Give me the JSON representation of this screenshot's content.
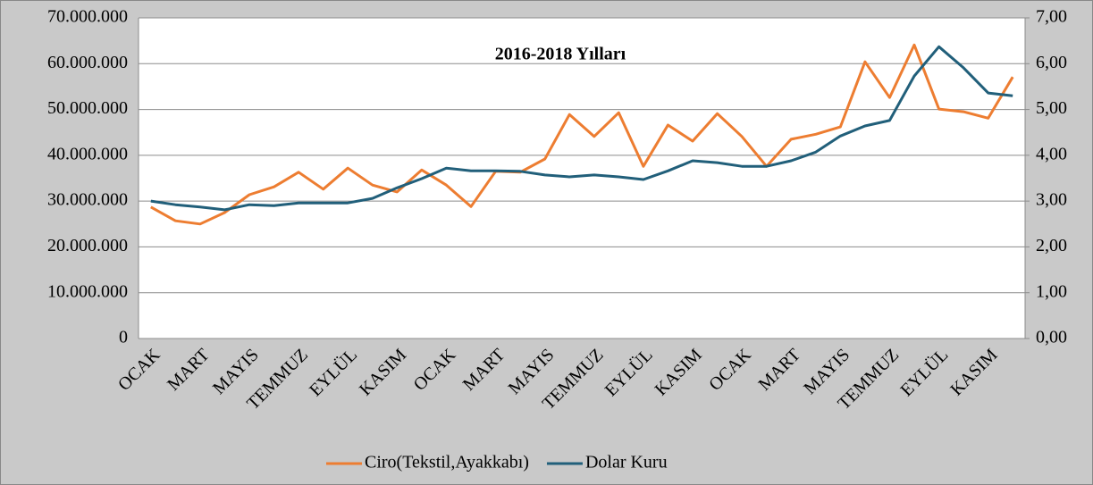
{
  "chart_data": {
    "type": "line",
    "title": "2016-2018 Yılları",
    "categories": [
      "OCAK",
      null,
      "MART",
      null,
      "MAYIS",
      null,
      "TEMMUZ",
      null,
      "EYLÜL",
      null,
      "KASIM",
      null,
      "OCAK",
      null,
      "MART",
      null,
      "MAYIS",
      null,
      "TEMMUZ",
      null,
      "EYLÜL",
      null,
      "KASIM",
      null,
      "OCAK",
      null,
      "MART",
      null,
      "MAYIS",
      null,
      "TEMMUZ",
      null,
      "EYLÜL",
      null,
      "KASIM",
      null
    ],
    "series": [
      {
        "name": "Ciro(Tekstil,Ayakkabı)",
        "color": "#ed7d31",
        "axis": "y",
        "values": [
          28700000,
          25700000,
          25000000,
          27500000,
          31400000,
          33100000,
          36300000,
          32600000,
          37200000,
          33500000,
          32000000,
          36800000,
          33500000,
          28800000,
          36500000,
          36300000,
          39200000,
          48900000,
          44100000,
          49300000,
          37600000,
          46600000,
          43100000,
          49100000,
          44100000,
          37600000,
          43500000,
          44600000,
          46200000,
          60400000,
          52600000,
          64100000,
          50100000,
          49500000,
          48100000,
          57100000
        ]
      },
      {
        "name": "Dolar Kuru",
        "color": "#215f7a",
        "axis": "y2",
        "values": [
          3.0,
          2.92,
          2.87,
          2.81,
          2.92,
          2.9,
          2.96,
          2.96,
          2.96,
          3.06,
          3.29,
          3.49,
          3.72,
          3.66,
          3.66,
          3.65,
          3.57,
          3.53,
          3.57,
          3.53,
          3.47,
          3.66,
          3.88,
          3.84,
          3.76,
          3.76,
          3.88,
          4.07,
          4.42,
          4.64,
          4.76,
          5.73,
          6.37,
          5.91,
          5.36,
          5.3
        ]
      }
    ],
    "ylim": [
      0,
      70000000
    ],
    "yticks": [
      0,
      {
        "value": 10000000,
        "label": "10.000.000"
      },
      {
        "value": 20000000,
        "label": "20.000.000"
      },
      {
        "value": 30000000,
        "label": "30.000.000"
      },
      {
        "value": 40000000,
        "label": "40.000.000"
      },
      {
        "value": 50000000,
        "label": "50.000.000"
      },
      {
        "value": 60000000,
        "label": "60.000.000"
      },
      {
        "value": 70000000,
        "label": "70.000.000"
      }
    ],
    "y2lim": [
      0,
      7
    ],
    "y2ticks": [
      {
        "value": 0,
        "label": "0,00"
      },
      {
        "value": 1,
        "label": "1,00"
      },
      {
        "value": 2,
        "label": "2,00"
      },
      {
        "value": 3,
        "label": "3,00"
      },
      {
        "value": 4,
        "label": "4,00"
      },
      {
        "value": 5,
        "label": "5,00"
      },
      {
        "value": 6,
        "label": "6,00"
      },
      {
        "value": 7,
        "label": "7,00"
      }
    ],
    "grid": true,
    "legend": "bottom"
  }
}
